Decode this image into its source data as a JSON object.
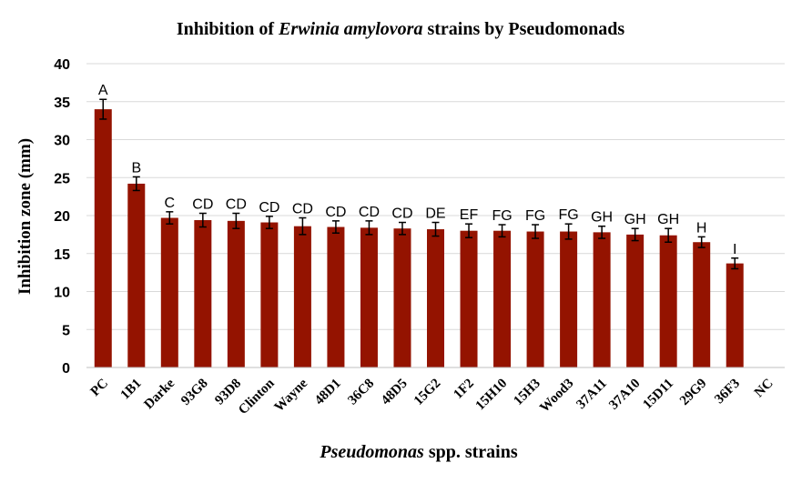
{
  "chart_data": {
    "type": "bar",
    "title_parts": [
      {
        "text": "Inhibition of ",
        "italic": false
      },
      {
        "text": "Erwinia amylovora",
        "italic": true
      },
      {
        "text": " strains by Pseudomonads",
        "italic": false
      }
    ],
    "xlabel_parts": [
      {
        "text": "Pseudomonas",
        "italic": true
      },
      {
        "text": " spp. strains",
        "italic": false
      }
    ],
    "ylabel": "Inhibition zone (mm)",
    "ylim": [
      0,
      40
    ],
    "yticks": [
      0,
      5,
      10,
      15,
      20,
      25,
      30,
      35,
      40
    ],
    "grid": true,
    "legend": "none",
    "categories": [
      "PC",
      "1B1",
      "Darke",
      "93G8",
      "93D8",
      "Clinton",
      "Wayne",
      "48D1",
      "36C8",
      "48D5",
      "15G2",
      "1F2",
      "15H10",
      "15H3",
      "Wood3",
      "37A11",
      "37A10",
      "15D11",
      "29G9",
      "36F3",
      "NC"
    ],
    "values": [
      34.0,
      24.2,
      19.7,
      19.4,
      19.3,
      19.1,
      18.6,
      18.5,
      18.4,
      18.3,
      18.2,
      18.0,
      18.0,
      17.9,
      17.9,
      17.8,
      17.5,
      17.4,
      16.5,
      13.7,
      0
    ],
    "errors": [
      1.3,
      0.9,
      0.8,
      0.9,
      1.0,
      0.8,
      1.1,
      0.8,
      0.9,
      0.8,
      0.9,
      0.9,
      0.8,
      0.9,
      1.0,
      0.8,
      0.8,
      0.9,
      0.7,
      0.7,
      0
    ],
    "letters": [
      "A",
      "B",
      "C",
      "CD",
      "CD",
      "CD",
      "CD",
      "CD",
      "CD",
      "CD",
      "DE",
      "EF",
      "FG",
      "FG",
      "FG",
      "GH",
      "GH",
      "GH",
      "H",
      "I",
      ""
    ],
    "colors": {
      "bar": "#941300",
      "grid": "#d9d9d9",
      "axis": "#bfbfbf",
      "text": "#000000"
    }
  }
}
